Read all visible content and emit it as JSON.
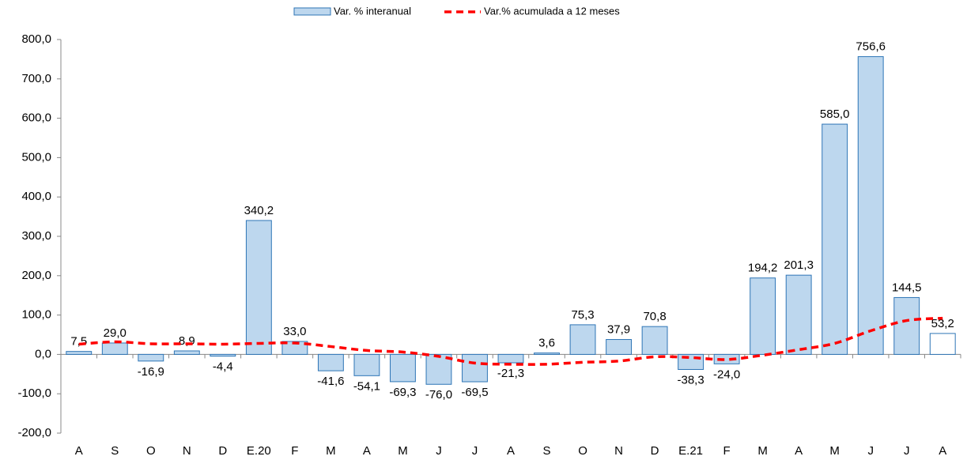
{
  "chart_data": {
    "type": "bar-line",
    "categories": [
      "A",
      "S",
      "O",
      "N",
      "D",
      "E.20",
      "F",
      "M",
      "A",
      "M",
      "J",
      "J",
      "A",
      "S",
      "O",
      "N",
      "D",
      "E.21",
      "F",
      "M",
      "A",
      "M",
      "J",
      "J",
      "A"
    ],
    "series": [
      {
        "name": "Var. % interanual",
        "type": "bar",
        "color": "#bdd7ee",
        "stroke": "#2e75b6",
        "colors": [
          "#bdd7ee",
          "#bdd7ee",
          "#bdd7ee",
          "#bdd7ee",
          "#bdd7ee",
          "#bdd7ee",
          "#bdd7ee",
          "#bdd7ee",
          "#bdd7ee",
          "#bdd7ee",
          "#bdd7ee",
          "#bdd7ee",
          "#bdd7ee",
          "#bdd7ee",
          "#bdd7ee",
          "#bdd7ee",
          "#bdd7ee",
          "#bdd7ee",
          "#bdd7ee",
          "#bdd7ee",
          "#bdd7ee",
          "#bdd7ee",
          "#bdd7ee",
          "#bdd7ee",
          "#ffffff"
        ],
        "values": [
          7.5,
          29.0,
          -16.9,
          8.9,
          -4.4,
          340.2,
          33.0,
          -41.6,
          -54.1,
          -69.3,
          -76.0,
          -69.5,
          -21.3,
          3.6,
          75.3,
          37.9,
          70.8,
          -38.3,
          -24.0,
          194.2,
          201.3,
          585.0,
          756.6,
          144.5,
          53.2
        ],
        "value_labels": [
          "7,5",
          "29,0",
          "-16,9",
          "8,9",
          "-4,4",
          "340,2",
          "33,0",
          "-41,6",
          "-54,1",
          "-69,3",
          "-76,0",
          "-69,5",
          "-21,3",
          "3,6",
          "75,3",
          "37,9",
          "70,8",
          "-38,3",
          "-24,0",
          "194,2",
          "201,3",
          "585,0",
          "756,6",
          "144,5",
          "53,2"
        ]
      },
      {
        "name": "Var.% acumulada a 12 meses",
        "type": "line",
        "color": "#ff0000",
        "values": [
          26,
          32,
          27,
          27,
          26,
          28,
          29,
          20,
          10,
          6,
          -5,
          -22,
          -25,
          -25,
          -20,
          -17,
          -6,
          -8,
          -13,
          -2,
          12,
          28,
          60,
          86,
          92
        ]
      }
    ],
    "ylim": [
      -200,
      800
    ],
    "yticks": [
      {
        "value": -200,
        "label": "-200,0"
      },
      {
        "value": -100,
        "label": "-100,0"
      },
      {
        "value": 0,
        "label": "0,0"
      },
      {
        "value": 100,
        "label": "100,0"
      },
      {
        "value": 200,
        "label": "200,0"
      },
      {
        "value": 300,
        "label": "300,0"
      },
      {
        "value": 400,
        "label": "400,0"
      },
      {
        "value": 500,
        "label": "500,0"
      },
      {
        "value": 600,
        "label": "600,0"
      },
      {
        "value": 700,
        "label": "700,0"
      },
      {
        "value": 800,
        "label": "800,0"
      }
    ],
    "legend": "top"
  }
}
